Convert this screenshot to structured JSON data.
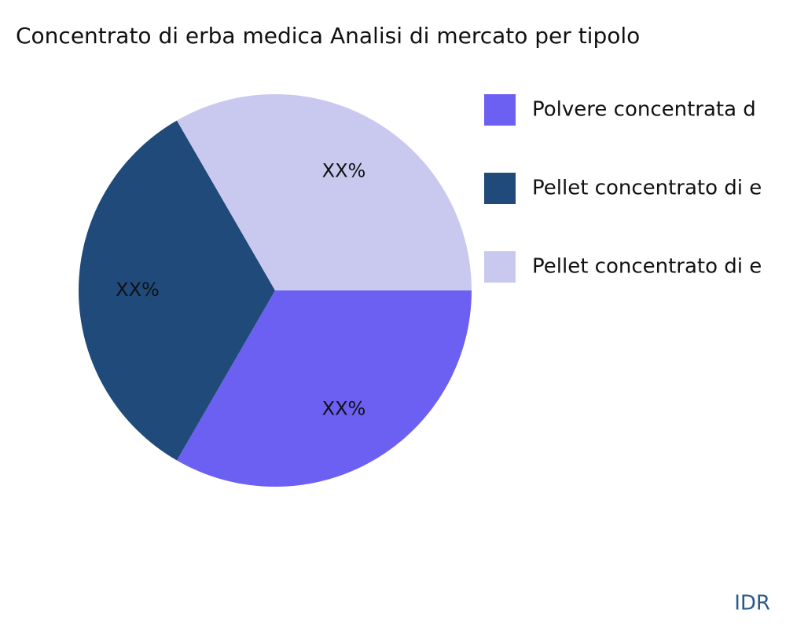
{
  "chart_data": {
    "type": "pie",
    "title": "Concentrato di erba medica Analisi di mercato per tipolo",
    "categories": [
      "Polvere concentrata d",
      "Pellet concentrato di e",
      "Pellet concentrato di e"
    ],
    "values": [
      33.33,
      33.33,
      33.33
    ],
    "value_labels": [
      "XX%",
      "XX%",
      "XX%"
    ],
    "colors": [
      "#6c60f2",
      "#1f4a7a",
      "#c9c9f0"
    ],
    "watermark": "IDR"
  }
}
